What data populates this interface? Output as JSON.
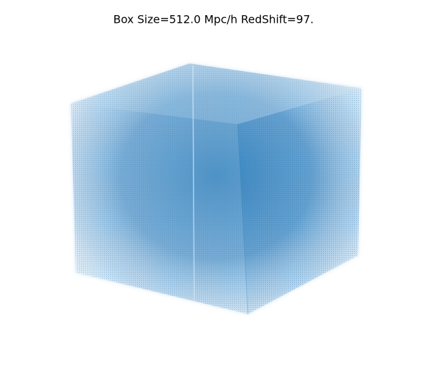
{
  "chart_data": {
    "type": "scatter3d",
    "title": "Box Size=512.0 Mpc/h  RedShift=97."
  }
}
